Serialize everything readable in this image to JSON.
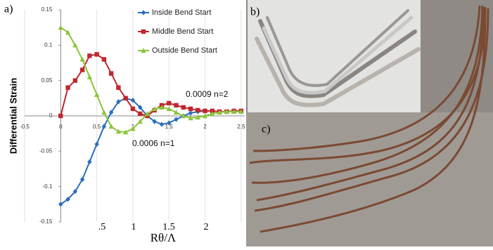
{
  "panel_labels": [
    "a)",
    "b)",
    "c)"
  ],
  "chart_data": {
    "type": "line",
    "y_label": "Differential Strain",
    "x_label": "Rθ/Λ",
    "x": [
      0,
      0.1,
      0.2,
      0.3,
      0.4,
      0.5,
      0.6,
      0.7,
      0.8,
      0.9,
      1.0,
      1.1,
      1.2,
      1.3,
      1.4,
      1.5,
      1.6,
      1.7,
      1.8,
      1.9,
      2.0,
      2.1,
      2.2,
      2.3,
      2.4,
      2.5
    ],
    "series": [
      {
        "name": "Inside Bend Start",
        "color": "#2a6ebb",
        "marker": "diamond",
        "values": [
          -0.125,
          -0.118,
          -0.107,
          -0.09,
          -0.065,
          -0.04,
          -0.015,
          0.005,
          0.02,
          0.025,
          0.022,
          0.012,
          0.0,
          -0.008,
          -0.012,
          -0.01,
          -0.005,
          0.0,
          0.004,
          0.006,
          0.007,
          0.007,
          0.006,
          0.006,
          0.007,
          0.007
        ]
      },
      {
        "name": "Middle Bend Start",
        "color": "#c0272d",
        "marker": "square",
        "values": [
          0.0,
          0.04,
          0.05,
          0.065,
          0.085,
          0.087,
          0.08,
          0.06,
          0.04,
          0.025,
          0.01,
          0.003,
          0.0,
          0.008,
          0.015,
          0.018,
          0.015,
          0.012,
          0.01,
          0.008,
          0.007,
          0.007,
          0.006,
          0.006,
          0.007,
          0.007
        ]
      },
      {
        "name": "Outside Bend Start",
        "color": "#8cc43c",
        "marker": "triangle",
        "values": [
          0.125,
          0.118,
          0.1,
          0.08,
          0.055,
          0.03,
          0.005,
          -0.015,
          -0.022,
          -0.023,
          -0.018,
          -0.008,
          0.003,
          0.01,
          0.012,
          0.01,
          0.005,
          0.0,
          -0.003,
          -0.002,
          0.0,
          0.003,
          0.005,
          0.006,
          0.006,
          0.006
        ]
      }
    ],
    "xlim": [
      -0.5,
      2.55
    ],
    "ylim": [
      -0.15,
      0.15
    ],
    "xticks": [
      -0.5,
      0,
      0.5,
      1,
      1.5,
      2,
      2.5
    ],
    "yticks": [
      0.15,
      0.1,
      0.05,
      0,
      -0.05,
      -0.1,
      -0.15
    ],
    "grid": true,
    "legend": "upper right",
    "annotations": [
      "0.0009 n=2",
      "0.0006 n=1"
    ],
    "bottom_labels": [
      ".5",
      "1",
      "1.5",
      "2"
    ]
  }
}
